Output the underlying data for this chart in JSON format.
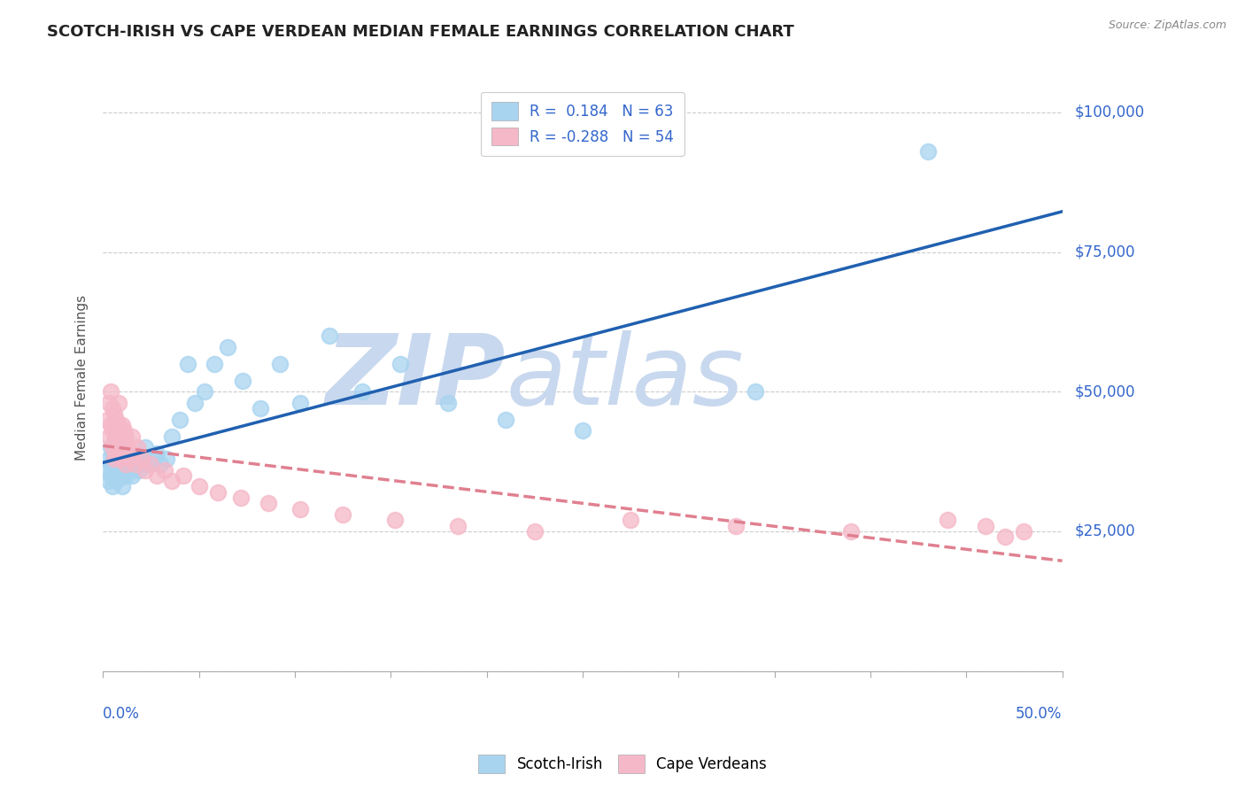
{
  "title": "SCOTCH-IRISH VS CAPE VERDEAN MEDIAN FEMALE EARNINGS CORRELATION CHART",
  "source": "Source: ZipAtlas.com",
  "ylabel": "Median Female Earnings",
  "yticks": [
    0,
    25000,
    50000,
    75000,
    100000
  ],
  "ytick_labels": [
    "",
    "$25,000",
    "$50,000",
    "$75,000",
    "$100,000"
  ],
  "xmin": 0.0,
  "xmax": 0.5,
  "ymin": 0,
  "ymax": 105000,
  "r_scotch": 0.184,
  "n_scotch": 63,
  "r_cape": -0.288,
  "n_cape": 54,
  "scotch_color": "#a8d4f0",
  "cape_color": "#f5b8c8",
  "scotch_line_color": "#2060b0",
  "cape_line_color": "#e08090",
  "watermark_color": "#c8d8ee",
  "scotch_x": [
    0.002,
    0.003,
    0.003,
    0.004,
    0.004,
    0.004,
    0.005,
    0.005,
    0.005,
    0.006,
    0.006,
    0.006,
    0.007,
    0.007,
    0.007,
    0.008,
    0.008,
    0.008,
    0.009,
    0.009,
    0.009,
    0.01,
    0.01,
    0.01,
    0.011,
    0.011,
    0.012,
    0.012,
    0.013,
    0.013,
    0.014,
    0.015,
    0.015,
    0.016,
    0.017,
    0.018,
    0.019,
    0.02,
    0.022,
    0.024,
    0.026,
    0.028,
    0.03,
    0.033,
    0.036,
    0.04,
    0.044,
    0.048,
    0.053,
    0.058,
    0.065,
    0.073,
    0.082,
    0.092,
    0.103,
    0.118,
    0.135,
    0.155,
    0.18,
    0.21,
    0.25,
    0.34,
    0.43
  ],
  "scotch_y": [
    36000,
    38000,
    34000,
    37000,
    40000,
    35000,
    36000,
    39000,
    33000,
    37000,
    41000,
    35000,
    38000,
    36000,
    34000,
    37000,
    39000,
    35000,
    38000,
    36000,
    40000,
    35000,
    37000,
    33000,
    38000,
    36000,
    37000,
    35000,
    39000,
    36000,
    38000,
    37000,
    35000,
    36000,
    38000,
    37000,
    36000,
    38000,
    40000,
    37000,
    38000,
    39000,
    37000,
    38000,
    42000,
    45000,
    55000,
    48000,
    50000,
    55000,
    58000,
    52000,
    47000,
    55000,
    48000,
    60000,
    50000,
    55000,
    48000,
    45000,
    43000,
    50000,
    93000
  ],
  "cape_x": [
    0.002,
    0.003,
    0.003,
    0.004,
    0.004,
    0.005,
    0.005,
    0.005,
    0.006,
    0.006,
    0.006,
    0.007,
    0.007,
    0.007,
    0.008,
    0.008,
    0.008,
    0.009,
    0.009,
    0.01,
    0.01,
    0.011,
    0.011,
    0.012,
    0.012,
    0.013,
    0.014,
    0.015,
    0.016,
    0.017,
    0.018,
    0.02,
    0.022,
    0.025,
    0.028,
    0.032,
    0.036,
    0.042,
    0.05,
    0.06,
    0.072,
    0.086,
    0.103,
    0.125,
    0.152,
    0.185,
    0.225,
    0.275,
    0.33,
    0.39,
    0.44,
    0.46,
    0.47,
    0.48
  ],
  "cape_y": [
    45000,
    48000,
    42000,
    50000,
    44000,
    43000,
    47000,
    40000,
    46000,
    41000,
    38000,
    45000,
    43000,
    39000,
    44000,
    40000,
    48000,
    42000,
    38000,
    44000,
    41000,
    43000,
    39000,
    42000,
    37000,
    40000,
    38000,
    42000,
    39000,
    37000,
    40000,
    38000,
    36000,
    37000,
    35000,
    36000,
    34000,
    35000,
    33000,
    32000,
    31000,
    30000,
    29000,
    28000,
    27000,
    26000,
    25000,
    27000,
    26000,
    25000,
    27000,
    26000,
    24000,
    25000
  ]
}
